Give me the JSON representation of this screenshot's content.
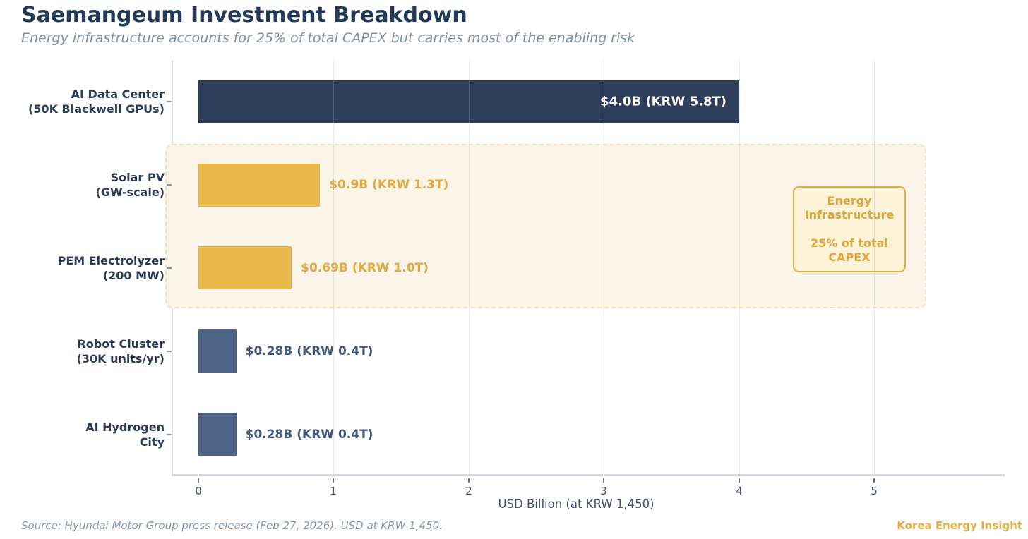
{
  "title": "Saemangeum Investment Breakdown",
  "subtitle": "Energy infrastructure accounts for 25% of total CAPEX but carries most of the enabling risk",
  "footer": {
    "source": "Source: Hyundai Motor Group press release (Feb 27, 2026). USD at KRW 1,450.",
    "brand": "Korea Energy Insight"
  },
  "colors": {
    "title": "#223a57",
    "subtitle": "#7e90a8",
    "navy_bar": "#2d3e5a",
    "gold_bar": "#e9b84a",
    "bluegray_bar": "#4d6385",
    "gold_text": "#e2aa41",
    "highlight_fill": "#fbf5e9",
    "highlight_border": "#f3e1bd",
    "annotation_fill": "#fdf3d9",
    "annotation_border": "#e2ae45",
    "axis_spine": "#d9dde3",
    "brand_gold": "#e4ac40"
  },
  "chart_data": {
    "type": "bar",
    "orientation": "horizontal",
    "title": "Saemangeum Investment Breakdown",
    "xlabel": "USD Billion (at KRW 1,450)",
    "ylabel": "",
    "xlim": [
      0,
      5.8
    ],
    "grid": "faint vertical gridlines at each tick",
    "legend": "none",
    "xticks": [
      "0",
      "1",
      "2",
      "3",
      "4",
      "5"
    ],
    "categories": [
      "AI Data Center (50K Blackwell GPUs)",
      "Solar PV (GW-scale)",
      "PEM Electrolyzer (200 MW)",
      "Robot Cluster (30K units/yr)",
      "AI Hydrogen City"
    ],
    "values": [
      4.0,
      0.9,
      0.69,
      0.28,
      0.28
    ],
    "bars": [
      {
        "category_line1": "AI Data Center",
        "category_line2": "(50K Blackwell GPUs)",
        "value": 4.0,
        "value_label": "$4.0B (KRW 5.8T)",
        "color": "#2d3e5a",
        "value_label_color": "#ffffff",
        "value_label_placement": "inside"
      },
      {
        "category_line1": "Solar PV",
        "category_line2": "(GW-scale)",
        "value": 0.9,
        "value_label": "$0.9B (KRW 1.3T)",
        "color": "#e9b84a",
        "value_label_color": "#e2aa41",
        "value_label_placement": "outside"
      },
      {
        "category_line1": "PEM Electrolyzer",
        "category_line2": "(200 MW)",
        "value": 0.69,
        "value_label": "$0.69B (KRW 1.0T)",
        "color": "#e9b84a",
        "value_label_color": "#e2aa41",
        "value_label_placement": "outside"
      },
      {
        "category_line1": "Robot Cluster",
        "category_line2": "(30K units/yr)",
        "value": 0.28,
        "value_label": "$0.28B (KRW 0.4T)",
        "color": "#4d6385",
        "value_label_color": "#44597e",
        "value_label_placement": "outside"
      },
      {
        "category_line1": "AI Hydrogen",
        "category_line2": "City",
        "value": 0.28,
        "value_label": "$0.28B (KRW 0.4T)",
        "color": "#4d6385",
        "value_label_color": "#44597e",
        "value_label_placement": "outside"
      }
    ],
    "highlight": {
      "covers": [
        "Solar PV (GW-scale)",
        "PEM Electrolyzer (200 MW)"
      ],
      "annotation_line1": "Energy Infrastructure",
      "annotation_line2": "25% of total CAPEX"
    }
  }
}
